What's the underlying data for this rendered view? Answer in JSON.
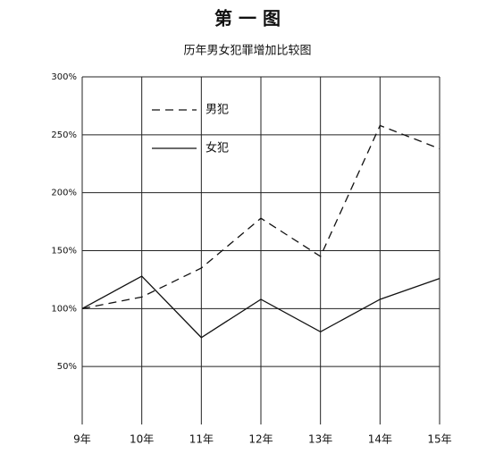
{
  "chart_data": {
    "type": "line",
    "title": "第 一 图",
    "subtitle": "历年男女犯罪增加比较图",
    "categories": [
      "9年",
      "10年",
      "11年",
      "12年",
      "13年",
      "14年",
      "15年"
    ],
    "series": [
      {
        "name": "男犯",
        "color": "#111111",
        "linestyle": "dashed",
        "values": [
          100,
          110,
          135,
          178,
          145,
          258,
          238
        ]
      },
      {
        "name": "女犯",
        "color": "#111111",
        "linestyle": "solid",
        "values": [
          100,
          128,
          75,
          108,
          80,
          108,
          126
        ]
      }
    ],
    "ylim": [
      0,
      300
    ],
    "yticks": [
      {
        "value": 50,
        "label": "50%"
      },
      {
        "value": 100,
        "label": "100%"
      },
      {
        "value": 150,
        "label": "150%"
      },
      {
        "value": 200,
        "label": "200%"
      },
      {
        "value": 250,
        "label": "250%"
      },
      {
        "value": 300,
        "label": "300%"
      }
    ],
    "grid": true,
    "legend": "upper left"
  }
}
